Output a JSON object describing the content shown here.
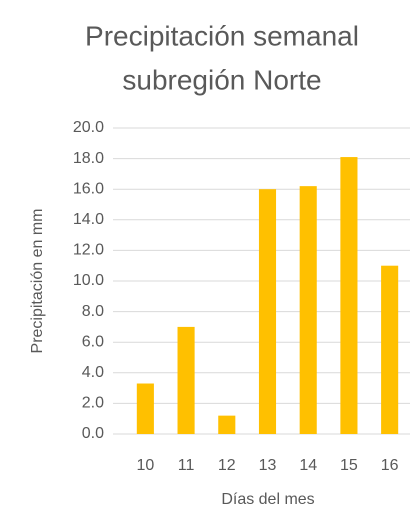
{
  "chart_data": {
    "type": "bar",
    "title": [
      "Precipitación semanal",
      "subregión Norte"
    ],
    "x_label": "Días del mes",
    "y_label": "Precipitación en mm",
    "categories": [
      "10",
      "11",
      "12",
      "13",
      "14",
      "15",
      "16"
    ],
    "values": [
      3.3,
      7.0,
      1.2,
      16.0,
      16.2,
      18.1,
      11.0
    ],
    "color": "#ffc000",
    "ylim": [
      0,
      20
    ],
    "yticks": [
      {
        "value": 0,
        "label": "0.0"
      },
      {
        "value": 2,
        "label": "2.0"
      },
      {
        "value": 4,
        "label": "4.0"
      },
      {
        "value": 6,
        "label": "6.0"
      },
      {
        "value": 8,
        "label": "8.0"
      },
      {
        "value": 10,
        "label": "10.0"
      },
      {
        "value": 12,
        "label": "12.0"
      },
      {
        "value": 14,
        "label": "14.0"
      },
      {
        "value": 16,
        "label": "16.0"
      },
      {
        "value": 18,
        "label": "18.0"
      },
      {
        "value": 20,
        "label": "20.0"
      }
    ],
    "grid": true
  }
}
